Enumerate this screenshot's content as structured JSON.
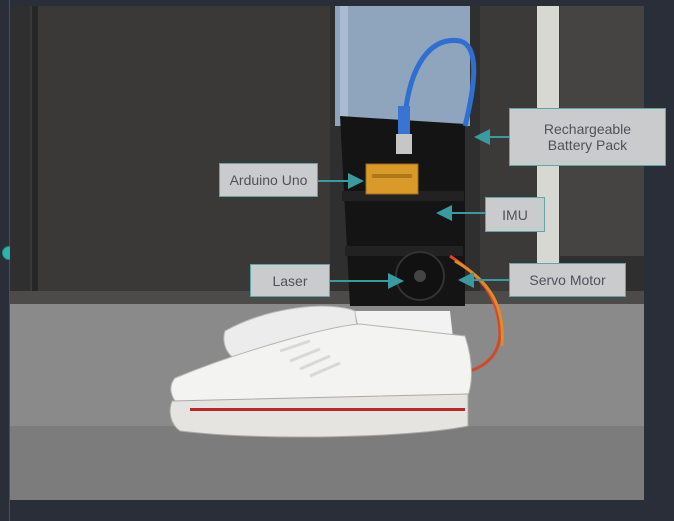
{
  "labels": {
    "battery": "Rechargeable\nBattery Pack",
    "arduino": "Arduino Uno",
    "imu": "IMU",
    "laser": "Laser",
    "servo": "Servo Motor"
  },
  "colors": {
    "accent": "#2bb3ac",
    "label_bg": "#c9cbcd",
    "label_text": "#4e5358",
    "arrow": "#3a9aa0",
    "background": "#2a2e38"
  },
  "icons": {
    "timeline_marker": "timeline-dot-icon"
  }
}
